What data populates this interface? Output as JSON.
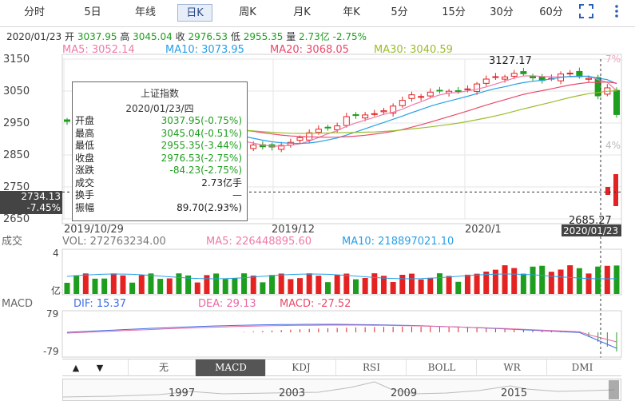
{
  "tabs": [
    {
      "label": "分时"
    },
    {
      "label": "5日"
    },
    {
      "label": "年线"
    },
    {
      "label": "日K"
    },
    {
      "label": "周K"
    },
    {
      "label": "月K"
    },
    {
      "label": "年K"
    },
    {
      "label": "5分"
    },
    {
      "label": "15分"
    },
    {
      "label": "30分"
    },
    {
      "label": "60分"
    }
  ],
  "active_tab": "日K",
  "icons": {
    "fullscreen": "fullscreen-icon",
    "more": "more-vertical-icon"
  },
  "info_line": {
    "date": "2020/01/23",
    "open_label": "开",
    "open": "3037.95",
    "high_label": "高",
    "high": "3045.04",
    "close_label": "收",
    "close": "2976.53",
    "low_label": "低",
    "low": "2955.35",
    "vol_label": "量",
    "vol": "2.73亿",
    "change": "-2.75%"
  },
  "ma_legend": {
    "ma5": "MA5: 3052.14",
    "ma10": "MA10: 3073.95",
    "ma20": "MA20: 3068.05",
    "ma30": "MA30: 3040.59"
  },
  "colors": {
    "up": "#e52222",
    "down": "#1e9e1e",
    "ma5": "#f07aa8",
    "ma10": "#27a0e8",
    "ma20": "#e94a6a",
    "ma30": "#9bbd2b",
    "grid": "#e6e6e6",
    "dif": "#3f6ee8",
    "dea": "#e96aa5"
  },
  "price_axis": {
    "labels": [
      "3150",
      "3050",
      "2950",
      "2850",
      "2750",
      "2650"
    ],
    "pct_labels": [
      "7%",
      "4%"
    ],
    "current": "2734.13",
    "current_pct": "-7.45%"
  },
  "annotations": {
    "peak": "3127.17",
    "trough": "2685.27"
  },
  "date_axis": {
    "labels": [
      "2019/10/29",
      "2019/12",
      "2020/1"
    ],
    "cursor": "2020/01/23"
  },
  "popup": {
    "title": "上证指数",
    "date": "2020/01/23/四",
    "rows": [
      {
        "k": "开盘",
        "v": "3037.95(-0.75%)",
        "neutral": false
      },
      {
        "k": "最高",
        "v": "3045.04(-0.51%)",
        "neutral": false
      },
      {
        "k": "最低",
        "v": "2955.35(-3.44%)",
        "neutral": false
      },
      {
        "k": "收盘",
        "v": "2976.53(-2.75%)",
        "neutral": false
      },
      {
        "k": "涨跌",
        "v": "-84.23(-2.75%)",
        "neutral": false
      },
      {
        "k": "成交",
        "v": "2.73亿手",
        "neutral": true
      },
      {
        "k": "换手",
        "v": "—",
        "neutral": true
      },
      {
        "k": "振幅",
        "v": "89.70(2.93%)",
        "neutral": true
      }
    ]
  },
  "volume": {
    "title": "成交",
    "vol": "VOL: 272763234.00",
    "ma5": "MA5: 226448895.60",
    "ma10": "MA10: 218897021.10",
    "axis_top": "4",
    "axis_unit": "亿"
  },
  "macd": {
    "title": "MACD",
    "dif": "DIF: 15.37",
    "dea": "DEA: 29.13",
    "macd": "MACD: -27.52",
    "axis_top": "79",
    "axis_bottom": "-79"
  },
  "indicator_tabs": [
    "无",
    "MACD",
    "KDJ",
    "RSI",
    "BOLL",
    "WR",
    "DMI"
  ],
  "active_indicator": "MACD",
  "nav_years": [
    "1997",
    "2003",
    "2009",
    "2015"
  ],
  "chart_data": {
    "type": "candlestick",
    "date_range": [
      "2019/10/29",
      "2020/01/23"
    ],
    "ylim": [
      2650,
      3150
    ],
    "last_candle": {
      "date": "2020/01/23",
      "open": 3037.95,
      "high": 3045.04,
      "low": 2955.35,
      "close": 2976.53
    },
    "peak": 3127.17,
    "trough": 2685.27
  }
}
